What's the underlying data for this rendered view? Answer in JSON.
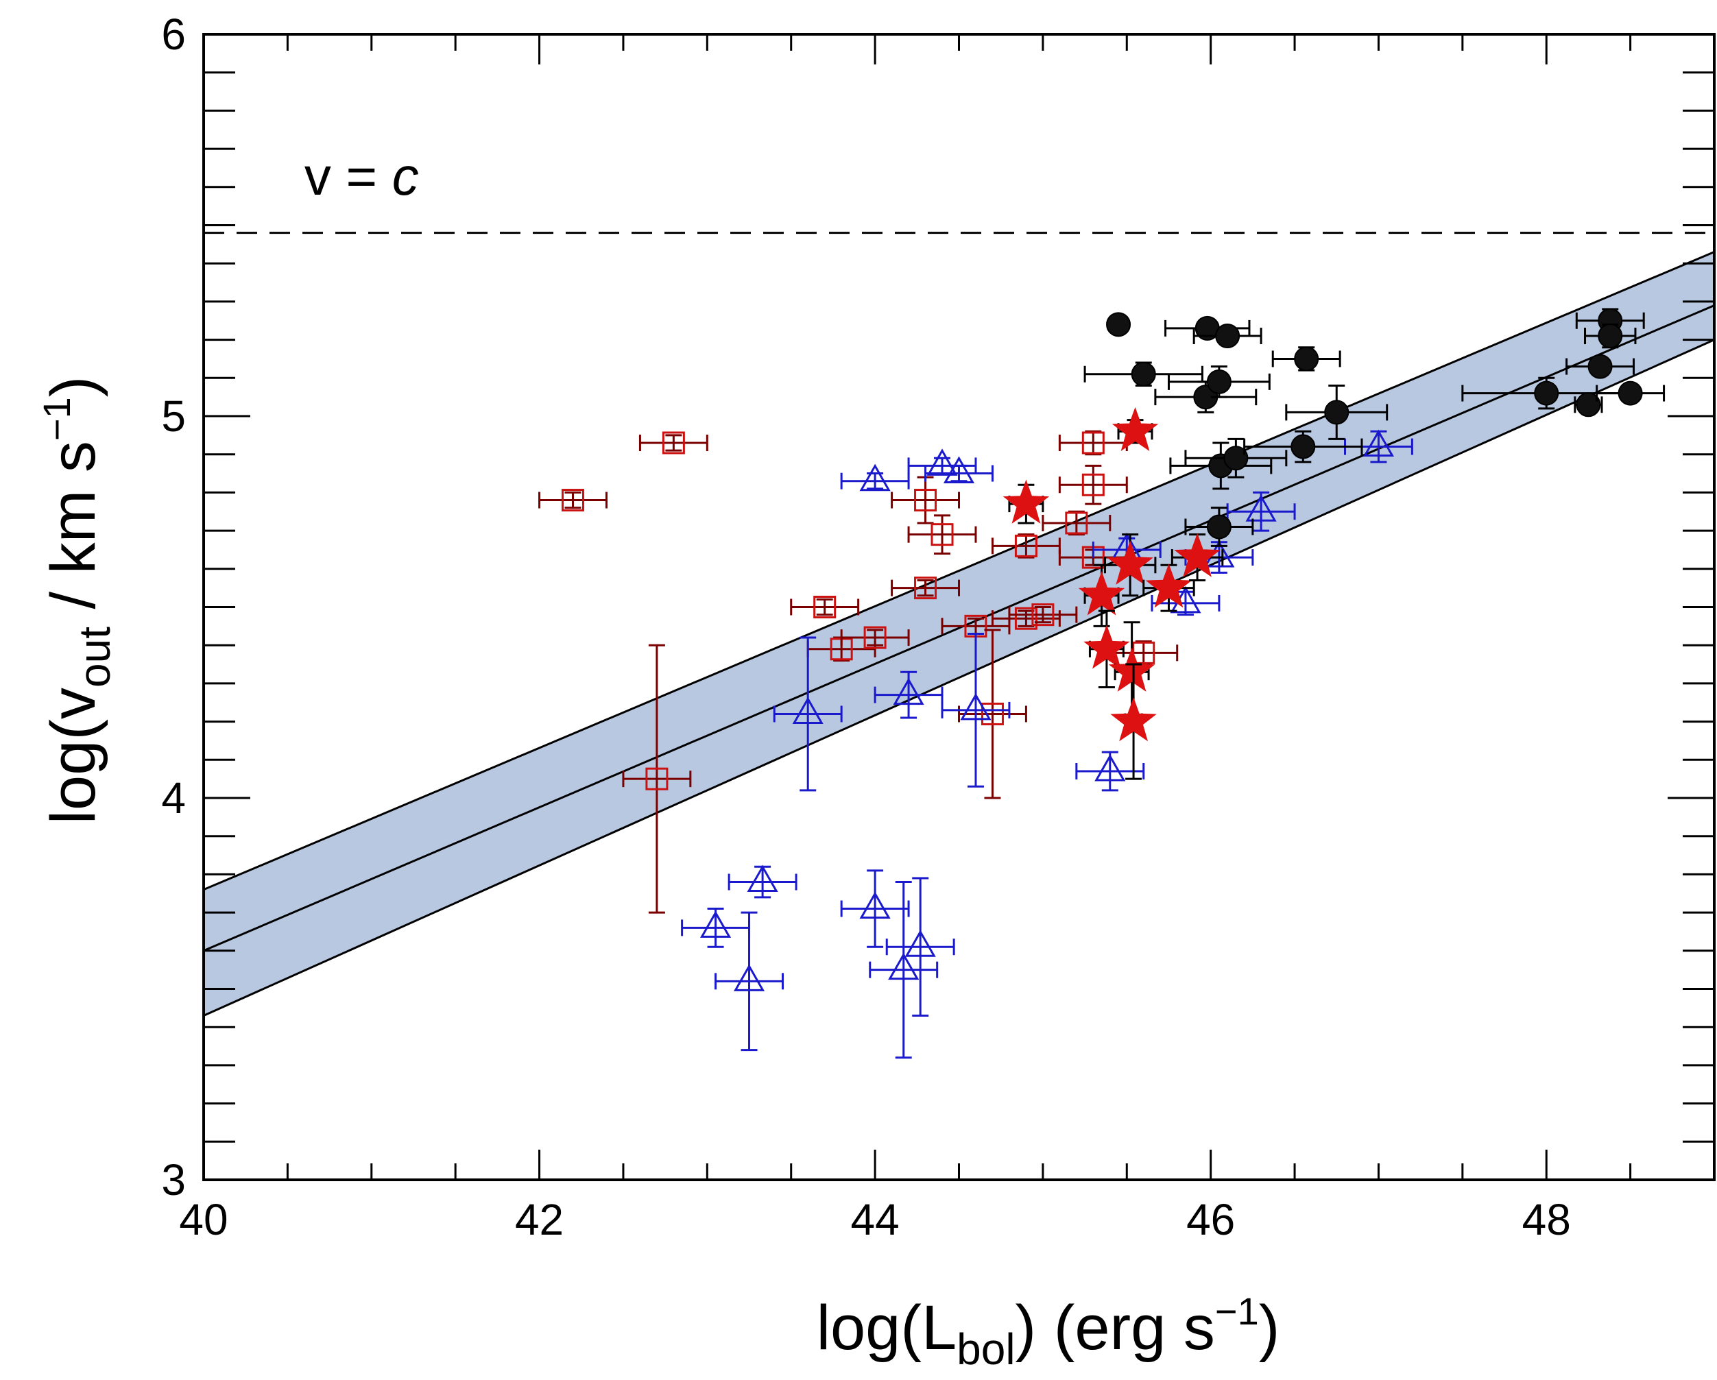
{
  "chart_data": {
    "type": "scatter",
    "xlabel": {
      "main": "log(L",
      "sub": "bol",
      "tail": ") (erg s",
      "sup": "−1",
      "close": ")"
    },
    "ylabel": {
      "main": "log(v",
      "sub": "out",
      "mid": " / km s",
      "sup": "−1",
      "close": ")"
    },
    "xlim": [
      40,
      49
    ],
    "ylim": [
      3,
      6
    ],
    "x_ticks": [
      "40",
      "42",
      "44",
      "46",
      "48"
    ],
    "y_ticks": [
      "3",
      "4",
      "5",
      "6"
    ],
    "x_tick_values": [
      40,
      42,
      44,
      46,
      48
    ],
    "y_tick_values": [
      3,
      4,
      5,
      6
    ],
    "x_minor_step": 0.5,
    "y_minor_step": 0.1,
    "reference_line": {
      "y": 5.48,
      "label_main": "v = ",
      "label_italic": "c",
      "label_x": 40.6,
      "label_y": 5.58,
      "color": "#000000"
    },
    "fit": {
      "x": [
        40,
        49
      ],
      "center": [
        3.6,
        5.29
      ],
      "lower": [
        3.43,
        5.2
      ],
      "upper": [
        3.76,
        5.43
      ],
      "band_color": "#b8c8e0",
      "line_color": "#000000"
    },
    "series": [
      {
        "marker": "square",
        "color": "#cc1111",
        "err_color": "#7a0000",
        "points": [
          {
            "x": 42.2,
            "y": 4.78,
            "xerr": 0.2,
            "yerr": 0.02
          },
          {
            "x": 42.8,
            "y": 4.93,
            "xerr": 0.2,
            "yerr": 0.02
          },
          {
            "x": 42.7,
            "y": 4.05,
            "xerr": 0.2,
            "yerr": 0.35
          },
          {
            "x": 43.7,
            "y": 4.5,
            "xerr": 0.2,
            "yerr": 0.02
          },
          {
            "x": 43.8,
            "y": 4.39,
            "xerr": 0.2,
            "yerr": 0.03
          },
          {
            "x": 44.0,
            "y": 4.42,
            "xerr": 0.2,
            "yerr": 0.02
          },
          {
            "x": 44.3,
            "y": 4.55,
            "xerr": 0.2,
            "yerr": 0.02
          },
          {
            "x": 44.3,
            "y": 4.78,
            "xerr": 0.2,
            "yerr": 0.06
          },
          {
            "x": 44.4,
            "y": 4.69,
            "xerr": 0.2,
            "yerr": 0.05
          },
          {
            "x": 44.6,
            "y": 4.45,
            "xerr": 0.2,
            "yerr": 0.02
          },
          {
            "x": 44.7,
            "y": 4.22,
            "xerr": 0.2,
            "yerr": 0.22
          },
          {
            "x": 44.9,
            "y": 4.66,
            "xerr": 0.2,
            "yerr": 0.03
          },
          {
            "x": 44.9,
            "y": 4.47,
            "xerr": 0.2,
            "yerr": 0.02
          },
          {
            "x": 45.0,
            "y": 4.48,
            "xerr": 0.2,
            "yerr": 0.02
          },
          {
            "x": 45.2,
            "y": 4.72,
            "xerr": 0.2,
            "yerr": 0.03
          },
          {
            "x": 45.3,
            "y": 4.93,
            "xerr": 0.2,
            "yerr": 0.03
          },
          {
            "x": 45.3,
            "y": 4.82,
            "xerr": 0.2,
            "yerr": 0.05
          },
          {
            "x": 45.3,
            "y": 4.63,
            "xerr": 0.2,
            "yerr": 0.02
          },
          {
            "x": 45.6,
            "y": 4.38,
            "xerr": 0.2,
            "yerr": 0.03
          }
        ]
      },
      {
        "marker": "triangle",
        "color": "#1a1acc",
        "err_color": "#1a1acc",
        "points": [
          {
            "x": 43.05,
            "y": 3.66,
            "xerr": 0.2,
            "yerr": 0.05
          },
          {
            "x": 43.25,
            "y": 3.52,
            "xerr": 0.2,
            "yerr": 0.18
          },
          {
            "x": 43.33,
            "y": 3.78,
            "xerr": 0.2,
            "yerr": 0.04
          },
          {
            "x": 43.6,
            "y": 4.22,
            "xerr": 0.2,
            "yerr": 0.2
          },
          {
            "x": 44.0,
            "y": 3.71,
            "xerr": 0.2,
            "yerr": 0.1
          },
          {
            "x": 44.0,
            "y": 4.83,
            "xerr": 0.2,
            "yerr": 0.02
          },
          {
            "x": 44.17,
            "y": 3.55,
            "xerr": 0.2,
            "yerr": 0.23
          },
          {
            "x": 44.2,
            "y": 4.27,
            "xerr": 0.2,
            "yerr": 0.06
          },
          {
            "x": 44.27,
            "y": 3.61,
            "xerr": 0.2,
            "yerr": 0.18
          },
          {
            "x": 44.4,
            "y": 4.87,
            "xerr": 0.2,
            "yerr": 0.02
          },
          {
            "x": 44.5,
            "y": 4.85,
            "xerr": 0.2,
            "yerr": 0.02
          },
          {
            "x": 44.6,
            "y": 4.23,
            "xerr": 0.2,
            "yerr": 0.2
          },
          {
            "x": 45.4,
            "y": 4.07,
            "xerr": 0.2,
            "yerr": 0.05
          },
          {
            "x": 45.5,
            "y": 4.65,
            "xerr": 0.2,
            "yerr": 0.03
          },
          {
            "x": 45.85,
            "y": 4.51,
            "xerr": 0.2,
            "yerr": 0.03
          },
          {
            "x": 46.05,
            "y": 4.63,
            "xerr": 0.2,
            "yerr": 0.04
          },
          {
            "x": 46.3,
            "y": 4.75,
            "xerr": 0.2,
            "yerr": 0.05
          },
          {
            "x": 47.0,
            "y": 4.92,
            "xerr": 0.2,
            "yerr": 0.04
          }
        ]
      },
      {
        "marker": "circle",
        "color": "#111111",
        "err_color": "#000000",
        "points": [
          {
            "x": 45.45,
            "y": 5.24,
            "xerr": 0.05,
            "yerr": 0.02
          },
          {
            "x": 45.6,
            "y": 5.11,
            "xerr": 0.35,
            "yerr": 0.03
          },
          {
            "x": 45.97,
            "y": 5.05,
            "xerr": 0.3,
            "yerr": 0.04
          },
          {
            "x": 45.98,
            "y": 5.23,
            "xerr": 0.25,
            "yerr": 0.02
          },
          {
            "x": 46.05,
            "y": 4.71,
            "xerr": 0.2,
            "yerr": 0.05
          },
          {
            "x": 46.05,
            "y": 5.09,
            "xerr": 0.3,
            "yerr": 0.04
          },
          {
            "x": 46.06,
            "y": 4.87,
            "xerr": 0.3,
            "yerr": 0.06
          },
          {
            "x": 46.1,
            "y": 5.21,
            "xerr": 0.2,
            "yerr": 0.02
          },
          {
            "x": 46.15,
            "y": 4.89,
            "xerr": 0.3,
            "yerr": 0.05
          },
          {
            "x": 46.55,
            "y": 4.92,
            "xerr": 0.35,
            "yerr": 0.04
          },
          {
            "x": 46.57,
            "y": 5.15,
            "xerr": 0.2,
            "yerr": 0.03
          },
          {
            "x": 46.75,
            "y": 5.01,
            "xerr": 0.3,
            "yerr": 0.07
          },
          {
            "x": 48.0,
            "y": 5.06,
            "xerr": 0.5,
            "yerr": 0.04
          },
          {
            "x": 48.25,
            "y": 5.03,
            "xerr": 0.08,
            "yerr": 0.02
          },
          {
            "x": 48.32,
            "y": 5.13,
            "xerr": 0.2,
            "yerr": 0.02
          },
          {
            "x": 48.38,
            "y": 5.25,
            "xerr": 0.2,
            "yerr": 0.03
          },
          {
            "x": 48.38,
            "y": 5.21,
            "xerr": 0.15,
            "yerr": 0.03
          },
          {
            "x": 48.5,
            "y": 5.06,
            "xerr": 0.2,
            "yerr": 0.02
          }
        ]
      },
      {
        "marker": "star",
        "color": "#dd1111",
        "err_color": "#000000",
        "points": [
          {
            "x": 44.9,
            "y": 4.77,
            "xerr": 0.1,
            "yerr": 0.05
          },
          {
            "x": 45.35,
            "y": 4.53,
            "xerr": 0.1,
            "yerr": 0.08
          },
          {
            "x": 45.38,
            "y": 4.39,
            "xerr": 0.1,
            "yerr": 0.1
          },
          {
            "x": 45.52,
            "y": 4.61,
            "xerr": 0.15,
            "yerr": 0.08
          },
          {
            "x": 45.53,
            "y": 4.33,
            "xerr": 0.1,
            "yerr": 0.13
          },
          {
            "x": 45.54,
            "y": 4.2,
            "xerr": 0.05,
            "yerr": 0.15
          },
          {
            "x": 45.55,
            "y": 4.96,
            "xerr": 0.1,
            "yerr": 0.03
          },
          {
            "x": 45.75,
            "y": 4.55,
            "xerr": 0.15,
            "yerr": 0.06
          },
          {
            "x": 45.92,
            "y": 4.63,
            "xerr": 0.15,
            "yerr": 0.06
          }
        ]
      }
    ]
  }
}
